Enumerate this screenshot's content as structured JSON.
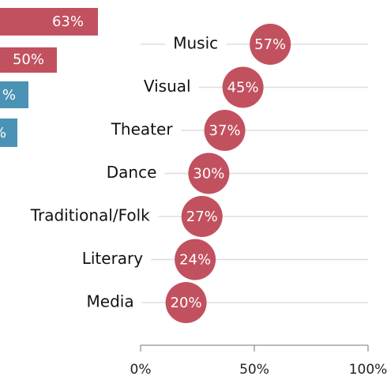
{
  "clipped_labels": [
    "63%",
    "50%",
    "%",
    "%"
  ],
  "chart_data": {
    "type": "dot",
    "categories": [
      "Music",
      "Visual",
      "Theater",
      "Dance",
      "Traditional/Folk",
      "Literary",
      "Media"
    ],
    "values": [
      57,
      45,
      37,
      30,
      27,
      24,
      20
    ],
    "value_labels": [
      "57%",
      "45%",
      "37%",
      "30%",
      "27%",
      "24%",
      "20%"
    ],
    "color": "#c2515f",
    "xlim": [
      0,
      100
    ],
    "xticks": [
      {
        "value": 0,
        "label": "0%"
      },
      {
        "value": 50,
        "label": "50%"
      },
      {
        "value": 100,
        "label": "100%"
      }
    ],
    "grid": true
  }
}
